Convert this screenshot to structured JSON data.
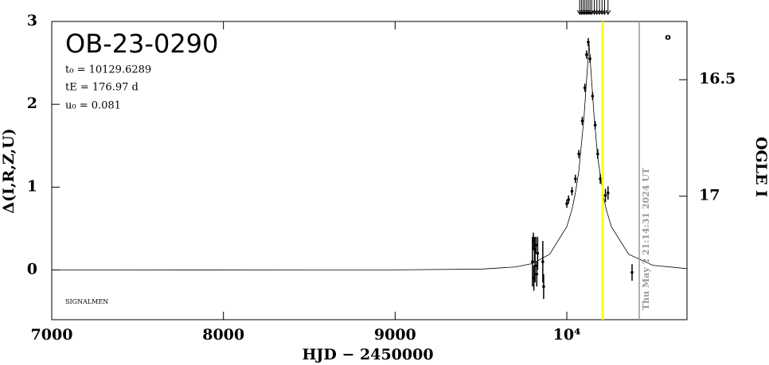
{
  "chart_data": {
    "type": "scatter",
    "title": "OB-23-0290",
    "parameters": [
      "t₀ = 10129.6289",
      "tE = 176.97 d",
      "u₀ = 0.081"
    ],
    "credit": "SIGNALMEN",
    "timestamp": "Thu May  2 21:14:31 2024 UT",
    "corner_mark": "o",
    "x_label": "HJD − 2450000",
    "y_label": "Δ(I,R,Z,U)",
    "y2_label": "OGLE I",
    "xlim": [
      7000,
      10700
    ],
    "xticks": [
      7000,
      8000,
      9000,
      {
        "value": 10000,
        "label": "10⁴"
      }
    ],
    "ylim": [
      -0.6,
      3.0
    ],
    "yticks": [
      0,
      1,
      2,
      3
    ],
    "y2lim": [
      17.53,
      16.25
    ],
    "y2ticks": [
      16.5,
      17
    ],
    "series": [
      {
        "color": "#000000",
        "x": [
          9800,
          9805,
          9808,
          9812,
          9815,
          9820,
          9825,
          9830,
          9860,
          9865,
          10000,
          10010,
          10030,
          10050,
          10070,
          10090,
          10105,
          10115,
          10125,
          10135,
          10150,
          10165,
          10180,
          10195,
          10210,
          10225,
          10240,
          10380
        ],
        "values": [
          0.1,
          0.35,
          -0.1,
          0.25,
          0.05,
          0.3,
          -0.05,
          0.2,
          0.1,
          -0.2,
          0.8,
          0.85,
          0.95,
          1.1,
          1.4,
          1.8,
          2.2,
          2.6,
          2.75,
          2.55,
          2.1,
          1.75,
          1.4,
          1.1,
          0.9,
          0.9,
          0.93,
          -0.03
        ],
        "errors": [
          0.3,
          0.1,
          0.15,
          0.15,
          0.2,
          0.1,
          0.15,
          0.2,
          0.25,
          0.15,
          0.05,
          0.05,
          0.05,
          0.05,
          0.05,
          0.05,
          0.05,
          0.05,
          0.05,
          0.05,
          0.05,
          0.05,
          0.06,
          0.06,
          0.06,
          0.08,
          0.08,
          0.1
        ]
      }
    ],
    "model": {
      "color": "#000000",
      "x": [
        7000,
        9000,
        9500,
        9700,
        9800,
        9900,
        10000,
        10030,
        10050,
        10070,
        10100,
        10129.6,
        10160,
        10180,
        10210,
        10230,
        10260,
        10360,
        10500,
        10700
      ],
      "values": [
        0,
        0.0013,
        0.01,
        0.036,
        0.078,
        0.19,
        0.523,
        0.73,
        0.93,
        1.197,
        1.841,
        2.732,
        1.82,
        1.36,
        0.92,
        0.726,
        0.52,
        0.19,
        0.056,
        0.016
      ]
    },
    "vlines": [
      {
        "x": 10209,
        "color": "#ffff00"
      },
      {
        "x": 10422,
        "color": "#999999"
      }
    ],
    "arrows_x": [
      10075,
      10085,
      10095,
      10105,
      10115,
      10125,
      10135,
      10145,
      10160,
      10175,
      10190,
      10205,
      10220,
      10240
    ]
  }
}
